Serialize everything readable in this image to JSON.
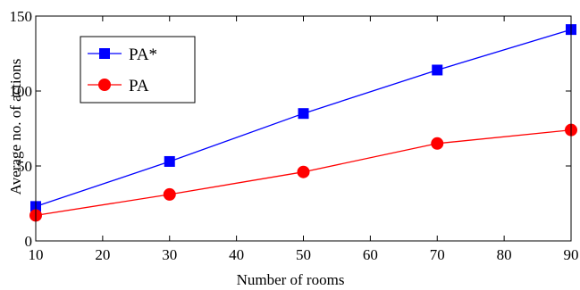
{
  "chart_data": {
    "type": "line",
    "xlabel": "Number of rooms",
    "ylabel": "Average no. of actions",
    "xlim": [
      10,
      90
    ],
    "ylim": [
      0,
      150
    ],
    "xticks": [
      10,
      20,
      30,
      40,
      50,
      60,
      70,
      80,
      90
    ],
    "yticks": [
      0,
      50,
      100,
      150
    ],
    "grid": false,
    "legend_position": "top-left",
    "series": [
      {
        "name": "PA*",
        "color": "#0000ff",
        "marker": "square",
        "x": [
          10,
          30,
          50,
          70,
          90
        ],
        "y": [
          23,
          53,
          85,
          114,
          141
        ]
      },
      {
        "name": "PA",
        "color": "#ff0000",
        "marker": "circle",
        "x": [
          10,
          30,
          50,
          70,
          90
        ],
        "y": [
          17,
          31,
          46,
          65,
          74
        ]
      }
    ]
  }
}
